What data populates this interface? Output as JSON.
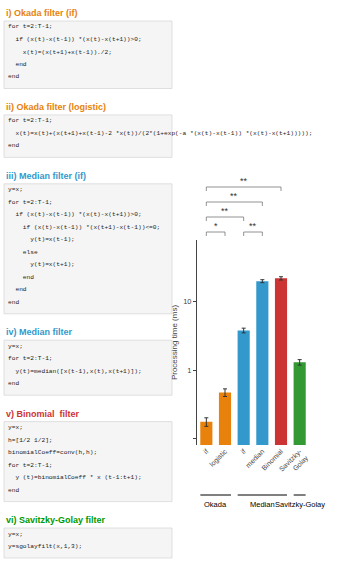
{
  "chart_data": {
    "type": "bar",
    "categories": [
      "if",
      "logistic",
      "if",
      "median",
      "Binomial",
      "Savitzky-\nGolay"
    ],
    "values": [
      0.175,
      0.47,
      3.8,
      20.0,
      22.0,
      1.3
    ],
    "errors": [
      0.025,
      0.06,
      0.3,
      1.0,
      1.2,
      0.12
    ],
    "colors": [
      "#E8820C",
      "#E8820C",
      "#3399CC",
      "#3399CC",
      "#CC3333",
      "#339933"
    ],
    "log": "y",
    "ylabel": "Processing time (ms)",
    "ylim": [
      0.08,
      80
    ],
    "yticks": [
      {
        "value": 0.1,
        "label": null
      },
      1,
      10
    ],
    "grid": false,
    "groups": [
      {
        "label": "Okada",
        "size": 2
      },
      {
        "label": "Median",
        "size": 3
      },
      {
        "label": "Savitzky-Golay",
        "size": 1
      }
    ],
    "annotations": [
      {
        "text": "*",
        "from": 0,
        "to": 1
      },
      {
        "text": "**",
        "from": 0,
        "to": 2
      },
      {
        "text": "**",
        "from": 2,
        "to": 3
      },
      {
        "text": "**",
        "from": 0,
        "to": 3
      },
      {
        "text": "**",
        "from": 0,
        "to": 4
      }
    ],
    "sections": [
      {
        "title": "i) Okada filter (if)",
        "color": "#E8820C",
        "lines": [
          "for t=2:T-1;",
          "  if (x(t)-x(t-1)) *(x(t)-x(t+1))>0;",
          "    x(t)=(x(t+1)+x(t-1))./2;",
          "  end",
          "end"
        ]
      },
      {
        "title": "ii) Okada filter (logistic)",
        "color": "#E8820C",
        "lines": [
          "for t=2:T-1;",
          "  x(t)=x(t)+(x(t+1)+x(t-1)-2 *x(t))/(2*(1+exp(-a *(x(t)-x(t-1)) *(x(t)-x(t+1)))));",
          "end"
        ]
      },
      {
        "title": "iii) Median filter (if)",
        "color": "#3399CC",
        "lines": [
          "y=x;",
          "for t=2:T-1;",
          "  if (x(t)-x(t-1)) *(x(t)-x(t+1))>0;",
          "    if (x(t)-x(t-1)) *(x(t+1)-x(t-1))<=0;",
          "      y(t)=x(t-1);",
          "    else",
          "      y(t)=x(t+1);",
          "    end",
          "  end",
          "end"
        ]
      },
      {
        "title": "iv) Median filter",
        "color": "#3399CC",
        "lines": [
          "y=x;",
          "for t=2:T-1;",
          "  y(t)=median([x(t-1),x(t),x(t+1)]);",
          "end"
        ]
      },
      {
        "title": "v) Binomial  filter",
        "color": "#CC3333",
        "lines": [
          "y=x;",
          "h=[1/2 1/2];",
          "binomialCoeff=conv(h,h);",
          "for t=2:T-1;",
          "  y (t)=binomialCoeff * x (t-1:t+1);",
          "end"
        ]
      },
      {
        "title": "vi) Savitzky-Golay filter",
        "color": "#009900",
        "lines": [
          "y=x;",
          "y=sgolayfilt(x,1,3);"
        ]
      }
    ]
  }
}
